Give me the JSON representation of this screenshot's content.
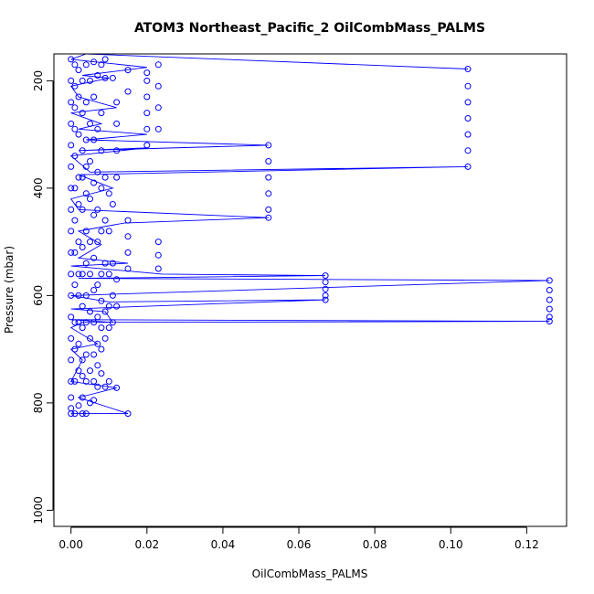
{
  "chart_data": {
    "type": "scatter",
    "title": "ATOM3 Northeast_Pacific_2 OilCombMass_PALMS",
    "xlabel": "OilCombMass_PALMS",
    "ylabel": "Pressure (mbar)",
    "xlim": [
      -0.0045,
      0.1305
    ],
    "ylim": [
      1030,
      150
    ],
    "y_reversed": true,
    "x_ticks": [
      0.0,
      0.02,
      0.04,
      0.06,
      0.08,
      0.1,
      0.12
    ],
    "x_tick_labels": [
      "0.00",
      "0.02",
      "0.04",
      "0.06",
      "0.08",
      "0.10",
      "0.12"
    ],
    "y_ticks": [
      200,
      400,
      600,
      800,
      1000
    ],
    "y_tick_labels": [
      "200",
      "400",
      "600",
      "800",
      "1000"
    ],
    "marker": "open-circle",
    "color": "#0000ff",
    "series": [
      {
        "values": [
          [
            0.0,
            820
          ],
          [
            0.0,
            810
          ],
          [
            0.0,
            790
          ],
          [
            0.0,
            760
          ],
          [
            0.0,
            720
          ],
          [
            0.0,
            680
          ],
          [
            0.0,
            640
          ],
          [
            0.0,
            600
          ],
          [
            0.0,
            560
          ],
          [
            0.0,
            520
          ],
          [
            0.0,
            480
          ],
          [
            0.0,
            440
          ],
          [
            0.0,
            400
          ],
          [
            0.0,
            360
          ],
          [
            0.0,
            320
          ],
          [
            0.0,
            280
          ],
          [
            0.0,
            240
          ],
          [
            0.0,
            200
          ],
          [
            0.0,
            160
          ],
          [
            0.001,
            820
          ],
          [
            0.001,
            760
          ],
          [
            0.001,
            700
          ],
          [
            0.001,
            650
          ],
          [
            0.001,
            580
          ],
          [
            0.001,
            520
          ],
          [
            0.001,
            460
          ],
          [
            0.001,
            400
          ],
          [
            0.001,
            340
          ],
          [
            0.001,
            290
          ],
          [
            0.001,
            250
          ],
          [
            0.001,
            210
          ],
          [
            0.001,
            170
          ],
          [
            0.002,
            805
          ],
          [
            0.002,
            740
          ],
          [
            0.002,
            690
          ],
          [
            0.002,
            650
          ],
          [
            0.002,
            600
          ],
          [
            0.002,
            560
          ],
          [
            0.002,
            500
          ],
          [
            0.002,
            430
          ],
          [
            0.002,
            380
          ],
          [
            0.002,
            300
          ],
          [
            0.002,
            230
          ],
          [
            0.002,
            180
          ],
          [
            0.003,
            820
          ],
          [
            0.003,
            790
          ],
          [
            0.003,
            750
          ],
          [
            0.003,
            720
          ],
          [
            0.003,
            660
          ],
          [
            0.003,
            620
          ],
          [
            0.003,
            560
          ],
          [
            0.003,
            510
          ],
          [
            0.003,
            440
          ],
          [
            0.003,
            380
          ],
          [
            0.003,
            330
          ],
          [
            0.003,
            260
          ],
          [
            0.003,
            200
          ],
          [
            0.004,
            820
          ],
          [
            0.004,
            760
          ],
          [
            0.004,
            710
          ],
          [
            0.004,
            650
          ],
          [
            0.004,
            600
          ],
          [
            0.004,
            540
          ],
          [
            0.004,
            480
          ],
          [
            0.004,
            410
          ],
          [
            0.004,
            360
          ],
          [
            0.004,
            310
          ],
          [
            0.004,
            240
          ],
          [
            0.004,
            170
          ],
          [
            0.005,
            800
          ],
          [
            0.005,
            740
          ],
          [
            0.005,
            680
          ],
          [
            0.005,
            630
          ],
          [
            0.005,
            560
          ],
          [
            0.005,
            500
          ],
          [
            0.005,
            420
          ],
          [
            0.005,
            350
          ],
          [
            0.005,
            280
          ],
          [
            0.005,
            200
          ],
          [
            0.006,
            795
          ],
          [
            0.006,
            760
          ],
          [
            0.006,
            710
          ],
          [
            0.006,
            650
          ],
          [
            0.006,
            590
          ],
          [
            0.006,
            530
          ],
          [
            0.006,
            450
          ],
          [
            0.006,
            390
          ],
          [
            0.006,
            310
          ],
          [
            0.006,
            230
          ],
          [
            0.006,
            165
          ],
          [
            0.007,
            770
          ],
          [
            0.007,
            730
          ],
          [
            0.007,
            690
          ],
          [
            0.007,
            640
          ],
          [
            0.007,
            580
          ],
          [
            0.007,
            500
          ],
          [
            0.007,
            440
          ],
          [
            0.007,
            370
          ],
          [
            0.007,
            290
          ],
          [
            0.007,
            190
          ],
          [
            0.008,
            745
          ],
          [
            0.008,
            700
          ],
          [
            0.008,
            660
          ],
          [
            0.008,
            610
          ],
          [
            0.008,
            560
          ],
          [
            0.008,
            480
          ],
          [
            0.008,
            400
          ],
          [
            0.008,
            330
          ],
          [
            0.008,
            260
          ],
          [
            0.008,
            170
          ],
          [
            0.009,
            770
          ],
          [
            0.009,
            680
          ],
          [
            0.009,
            630
          ],
          [
            0.009,
            540
          ],
          [
            0.009,
            460
          ],
          [
            0.009,
            380
          ],
          [
            0.009,
            195
          ],
          [
            0.009,
            160
          ],
          [
            0.01,
            760
          ],
          [
            0.01,
            660
          ],
          [
            0.01,
            620
          ],
          [
            0.01,
            560
          ],
          [
            0.01,
            480
          ],
          [
            0.01,
            410
          ],
          [
            0.011,
            650
          ],
          [
            0.011,
            600
          ],
          [
            0.011,
            540
          ],
          [
            0.011,
            430
          ],
          [
            0.011,
            195
          ],
          [
            0.012,
            772
          ],
          [
            0.012,
            620
          ],
          [
            0.012,
            570
          ],
          [
            0.012,
            380
          ],
          [
            0.012,
            330
          ],
          [
            0.012,
            280
          ],
          [
            0.012,
            240
          ],
          [
            0.015,
            820
          ],
          [
            0.015,
            550
          ],
          [
            0.015,
            520
          ],
          [
            0.015,
            490
          ],
          [
            0.015,
            460
          ],
          [
            0.015,
            220
          ],
          [
            0.015,
            180
          ],
          [
            0.02,
            320
          ],
          [
            0.02,
            290
          ],
          [
            0.02,
            260
          ],
          [
            0.02,
            230
          ],
          [
            0.02,
            200
          ],
          [
            0.02,
            185
          ],
          [
            0.023,
            550
          ],
          [
            0.023,
            525
          ],
          [
            0.023,
            500
          ],
          [
            0.023,
            290
          ],
          [
            0.023,
            250
          ],
          [
            0.023,
            210
          ],
          [
            0.023,
            170
          ],
          [
            0.052,
            320
          ],
          [
            0.052,
            350
          ],
          [
            0.052,
            380
          ],
          [
            0.052,
            410
          ],
          [
            0.052,
            440
          ],
          [
            0.052,
            455
          ],
          [
            0.067,
            563
          ],
          [
            0.067,
            575
          ],
          [
            0.067,
            588
          ],
          [
            0.067,
            600
          ],
          [
            0.067,
            608
          ],
          [
            0.1045,
            178
          ],
          [
            0.1045,
            210
          ],
          [
            0.1045,
            240
          ],
          [
            0.1045,
            270
          ],
          [
            0.1045,
            300
          ],
          [
            0.1045,
            330
          ],
          [
            0.1045,
            360
          ],
          [
            0.126,
            572
          ],
          [
            0.126,
            590
          ],
          [
            0.126,
            608
          ],
          [
            0.126,
            625
          ],
          [
            0.126,
            640
          ],
          [
            0.126,
            648
          ]
        ],
        "path": [
          [
            0.0,
            820
          ],
          [
            0.015,
            820
          ],
          [
            0.002,
            790
          ],
          [
            0.012,
            772
          ],
          [
            0.0,
            760
          ],
          [
            0.003,
            720
          ],
          [
            0.0,
            700
          ],
          [
            0.007,
            690
          ],
          [
            0.0,
            660
          ],
          [
            0.003,
            650
          ],
          [
            0.126,
            648
          ],
          [
            0.0,
            645
          ],
          [
            0.011,
            650
          ],
          [
            0.009,
            630
          ],
          [
            0.0,
            625
          ],
          [
            0.067,
            608
          ],
          [
            0.01,
            612
          ],
          [
            0.0,
            600
          ],
          [
            0.126,
            572
          ],
          [
            0.002,
            568
          ],
          [
            0.067,
            563
          ],
          [
            0.024,
            560
          ],
          [
            0.0,
            545
          ],
          [
            0.015,
            540
          ],
          [
            0.002,
            530
          ],
          [
            0.008,
            505
          ],
          [
            0.002,
            480
          ],
          [
            0.014,
            465
          ],
          [
            0.052,
            455
          ],
          [
            0.002,
            440
          ],
          [
            0.0,
            420
          ],
          [
            0.011,
            400
          ],
          [
            0.002,
            375
          ],
          [
            0.1045,
            360
          ],
          [
            0.005,
            370
          ],
          [
            0.0,
            340
          ],
          [
            0.02,
            325
          ],
          [
            0.002,
            330
          ],
          [
            0.052,
            320
          ],
          [
            0.004,
            310
          ],
          [
            0.02,
            300
          ],
          [
            0.002,
            290
          ],
          [
            0.008,
            280
          ],
          [
            0.0,
            260
          ],
          [
            0.012,
            250
          ],
          [
            0.002,
            230
          ],
          [
            0.0,
            210
          ],
          [
            0.01,
            195
          ],
          [
            0.003,
            190
          ],
          [
            0.02,
            175
          ],
          [
            0.0,
            160
          ],
          [
            0.004,
            150
          ],
          [
            0.1045,
            178
          ]
        ]
      }
    ]
  }
}
